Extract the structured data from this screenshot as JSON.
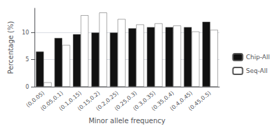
{
  "chart_data": {
    "type": "bar",
    "xlabel": "Minor allele frequency",
    "ylabel": "Percentage (%)",
    "categories": [
      "(0,0.05)",
      "(0.05,0.1)",
      "(0.1,0.15)",
      "(0.15,0.2)",
      "(0.2,0.25)",
      "(0.25,0.3)",
      "(0.3,0.35)",
      "(0.35,0.4)",
      "(0.4,0.45)",
      "(0.45,0.5)"
    ],
    "series": [
      {
        "name": "Chip-All",
        "color": "#111111",
        "values": [
          6.5,
          9.0,
          9.7,
          10.0,
          10.0,
          10.8,
          11.0,
          11.0,
          11.0,
          12.0
        ]
      },
      {
        "name": "Seq-All",
        "color": "#ffffff",
        "values": [
          0.8,
          7.7,
          13.2,
          13.7,
          12.5,
          11.5,
          11.7,
          11.3,
          10.2,
          10.5
        ]
      }
    ],
    "ylim": [
      0,
      14.5
    ],
    "yticks": [
      0,
      5,
      10
    ],
    "grid": true,
    "legend": "right"
  }
}
